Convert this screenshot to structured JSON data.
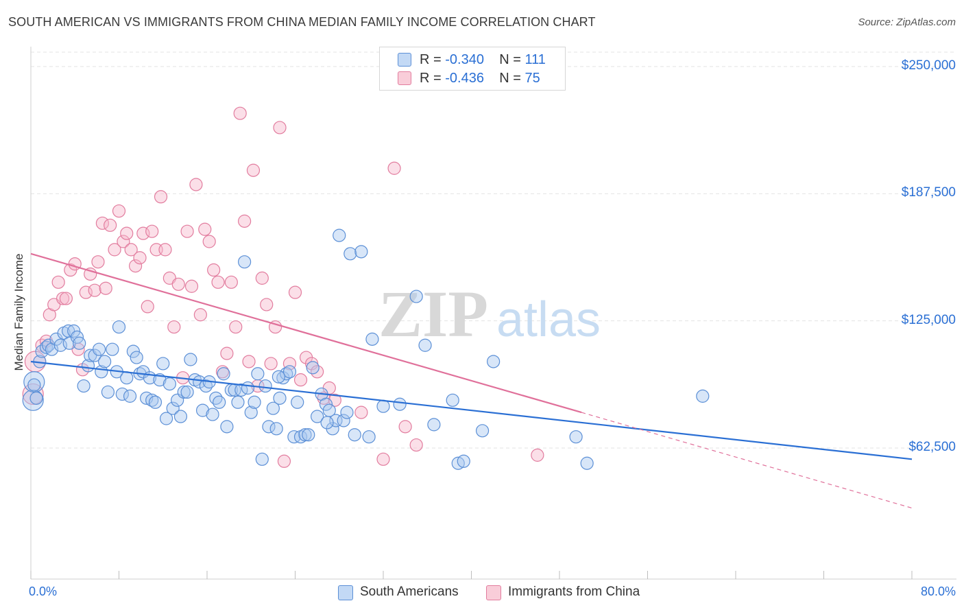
{
  "title": "SOUTH AMERICAN VS IMMIGRANTS FROM CHINA MEDIAN FAMILY INCOME CORRELATION CHART",
  "source": "Source: ZipAtlas.com",
  "watermark": {
    "zip": "ZIP",
    "atlas": "atlas"
  },
  "colors": {
    "blue_fill": "#a9c8f0",
    "blue_stroke": "#5b8fd6",
    "blue_line": "#2a6fd4",
    "pink_fill": "#f6b8cb",
    "pink_stroke": "#e27c9e",
    "pink_line": "#e0709a",
    "grid": "#e3e3e3",
    "axis_text": "#2a6fd4"
  },
  "legend": {
    "r_label": "R =",
    "n_label": "N =",
    "blue": {
      "r": "-0.340",
      "n": "111"
    },
    "pink": {
      "r": "-0.436",
      "n": "75"
    }
  },
  "bottom_legend": {
    "blue": "South Americans",
    "pink": "Immigrants from China"
  },
  "chart_data": {
    "type": "scatter",
    "title": "SOUTH AMERICAN VS IMMIGRANTS FROM CHINA MEDIAN FAMILY INCOME CORRELATION CHART",
    "xlabel": "",
    "ylabel": "Median Family Income",
    "xlim": [
      0,
      80
    ],
    "ylim": [
      0,
      265000
    ],
    "x_tick_labels": [
      "0.0%",
      "80.0%"
    ],
    "y_ticks": [
      62500,
      125000,
      187500,
      250000
    ],
    "y_tick_labels": [
      "$62,500",
      "$125,000",
      "$187,500",
      "$250,000"
    ],
    "grid": true,
    "legend_position": "top-center",
    "series": [
      {
        "name": "South Americans",
        "color": "#a9c8f0",
        "r": -0.34,
        "n": 111,
        "trend": {
          "x0": 0,
          "y0": 105000,
          "x1": 80,
          "y1": 57000
        },
        "points": [
          [
            0.2,
            86000
          ],
          [
            0.3,
            95000
          ],
          [
            0.8,
            105000
          ],
          [
            1.0,
            110000
          ],
          [
            1.4,
            112000
          ],
          [
            1.6,
            113000
          ],
          [
            1.9,
            111000
          ],
          [
            2.3,
            116000
          ],
          [
            2.7,
            113000
          ],
          [
            3.0,
            119000
          ],
          [
            3.4,
            120000
          ],
          [
            3.5,
            114000
          ],
          [
            3.9,
            120000
          ],
          [
            4.2,
            117000
          ],
          [
            4.4,
            114000
          ],
          [
            4.8,
            93000
          ],
          [
            5.2,
            103000
          ],
          [
            5.4,
            108000
          ],
          [
            5.8,
            108000
          ],
          [
            6.2,
            111000
          ],
          [
            6.4,
            100000
          ],
          [
            6.7,
            105000
          ],
          [
            7.0,
            90000
          ],
          [
            7.4,
            111000
          ],
          [
            7.8,
            100000
          ],
          [
            8.0,
            122000
          ],
          [
            8.3,
            89000
          ],
          [
            8.7,
            97000
          ],
          [
            9.0,
            88000
          ],
          [
            9.3,
            110000
          ],
          [
            9.6,
            107000
          ],
          [
            9.9,
            99000
          ],
          [
            10.2,
            100000
          ],
          [
            10.5,
            87000
          ],
          [
            10.8,
            97000
          ],
          [
            11.0,
            86000
          ],
          [
            11.3,
            85000
          ],
          [
            11.7,
            96000
          ],
          [
            12.0,
            104000
          ],
          [
            12.3,
            77000
          ],
          [
            12.6,
            94000
          ],
          [
            12.9,
            82000
          ],
          [
            13.3,
            86000
          ],
          [
            13.6,
            78000
          ],
          [
            13.9,
            90000
          ],
          [
            14.2,
            90000
          ],
          [
            14.5,
            106000
          ],
          [
            14.9,
            96000
          ],
          [
            15.3,
            95000
          ],
          [
            15.6,
            81000
          ],
          [
            15.9,
            93000
          ],
          [
            16.2,
            95000
          ],
          [
            16.5,
            79000
          ],
          [
            16.8,
            87000
          ],
          [
            17.1,
            85000
          ],
          [
            17.5,
            99000
          ],
          [
            17.8,
            73000
          ],
          [
            18.2,
            91000
          ],
          [
            18.5,
            91000
          ],
          [
            18.8,
            85000
          ],
          [
            19.1,
            91000
          ],
          [
            19.4,
            154000
          ],
          [
            19.7,
            92000
          ],
          [
            20.0,
            80000
          ],
          [
            20.3,
            85000
          ],
          [
            20.6,
            99000
          ],
          [
            21.0,
            57000
          ],
          [
            21.3,
            93000
          ],
          [
            21.6,
            73000
          ],
          [
            22.0,
            82000
          ],
          [
            22.3,
            72000
          ],
          [
            22.6,
            87000
          ],
          [
            22.9,
            97000
          ],
          [
            23.2,
            99000
          ],
          [
            23.5,
            100000
          ],
          [
            23.9,
            68000
          ],
          [
            24.2,
            85000
          ],
          [
            24.5,
            68000
          ],
          [
            24.9,
            69000
          ],
          [
            25.2,
            69000
          ],
          [
            25.6,
            102000
          ],
          [
            26.0,
            78000
          ],
          [
            26.4,
            89000
          ],
          [
            26.8,
            84000
          ],
          [
            27.1,
            81000
          ],
          [
            27.4,
            72000
          ],
          [
            27.7,
            76000
          ],
          [
            28.0,
            167000
          ],
          [
            28.4,
            76000
          ],
          [
            28.7,
            80000
          ],
          [
            29.0,
            158000
          ],
          [
            29.4,
            69000
          ],
          [
            30.0,
            159000
          ],
          [
            30.7,
            68000
          ],
          [
            31.0,
            116000
          ],
          [
            32.0,
            83000
          ],
          [
            35.0,
            137000
          ],
          [
            35.8,
            113000
          ],
          [
            36.6,
            74000
          ],
          [
            38.3,
            86000
          ],
          [
            38.8,
            55000
          ],
          [
            39.3,
            56000
          ],
          [
            41.0,
            71000
          ],
          [
            42.0,
            105000
          ],
          [
            49.5,
            68000
          ],
          [
            50.5,
            55000
          ],
          [
            61.0,
            88000
          ],
          [
            0.3,
            93500
          ],
          [
            0.5,
            87000
          ],
          [
            22.5,
            97500
          ],
          [
            26.9,
            75000
          ],
          [
            33.5,
            84000
          ]
        ]
      },
      {
        "name": "Immigrants from China",
        "color": "#f6b8cb",
        "r": -0.436,
        "n": 75,
        "trend": {
          "x0": 0,
          "y0": 158000,
          "x1": 50,
          "y1": 80000,
          "dash_x1": 80,
          "dash_y1": 33000
        },
        "points": [
          [
            0.2,
            89000
          ],
          [
            0.4,
            105000
          ],
          [
            1.0,
            113000
          ],
          [
            1.4,
            115000
          ],
          [
            1.7,
            128000
          ],
          [
            2.1,
            133000
          ],
          [
            2.5,
            144000
          ],
          [
            2.9,
            136000
          ],
          [
            3.2,
            136000
          ],
          [
            3.6,
            150000
          ],
          [
            4.0,
            153000
          ],
          [
            4.3,
            111000
          ],
          [
            4.7,
            101000
          ],
          [
            5.0,
            139000
          ],
          [
            5.4,
            148000
          ],
          [
            5.8,
            140000
          ],
          [
            6.1,
            154000
          ],
          [
            6.5,
            173000
          ],
          [
            6.8,
            141000
          ],
          [
            7.2,
            172000
          ],
          [
            7.6,
            160000
          ],
          [
            8.0,
            179000
          ],
          [
            8.4,
            164000
          ],
          [
            8.7,
            168000
          ],
          [
            9.1,
            160000
          ],
          [
            9.5,
            152000
          ],
          [
            9.9,
            156000
          ],
          [
            10.2,
            168000
          ],
          [
            10.6,
            132000
          ],
          [
            11.0,
            169000
          ],
          [
            11.4,
            160000
          ],
          [
            11.8,
            186000
          ],
          [
            12.2,
            160000
          ],
          [
            12.6,
            146000
          ],
          [
            13.0,
            122000
          ],
          [
            13.4,
            143000
          ],
          [
            13.8,
            97000
          ],
          [
            14.2,
            169000
          ],
          [
            14.6,
            142000
          ],
          [
            15.0,
            192000
          ],
          [
            15.4,
            128000
          ],
          [
            15.8,
            170000
          ],
          [
            16.2,
            164000
          ],
          [
            16.6,
            150000
          ],
          [
            17.0,
            144000
          ],
          [
            17.4,
            100000
          ],
          [
            17.8,
            109000
          ],
          [
            18.2,
            144000
          ],
          [
            18.6,
            122000
          ],
          [
            19.0,
            227000
          ],
          [
            19.4,
            174000
          ],
          [
            19.8,
            105000
          ],
          [
            20.2,
            199000
          ],
          [
            20.6,
            93000
          ],
          [
            21.0,
            146000
          ],
          [
            21.4,
            133000
          ],
          [
            21.8,
            104000
          ],
          [
            22.2,
            122000
          ],
          [
            22.6,
            220000
          ],
          [
            23.0,
            56000
          ],
          [
            23.5,
            104000
          ],
          [
            24.0,
            139000
          ],
          [
            25.0,
            107000
          ],
          [
            25.5,
            104000
          ],
          [
            26.0,
            100000
          ],
          [
            26.6,
            87000
          ],
          [
            27.1,
            92000
          ],
          [
            27.6,
            86000
          ],
          [
            30.0,
            80000
          ],
          [
            32.0,
            57000
          ],
          [
            33.0,
            200000
          ],
          [
            34.0,
            73000
          ],
          [
            35.0,
            64000
          ],
          [
            46.0,
            59000
          ],
          [
            24.5,
            96000
          ]
        ]
      }
    ]
  }
}
